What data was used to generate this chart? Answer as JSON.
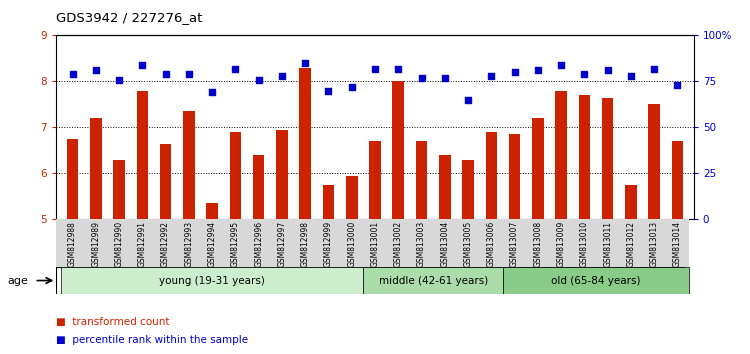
{
  "title": "GDS3942 / 227276_at",
  "samples": [
    "GSM812988",
    "GSM812989",
    "GSM812990",
    "GSM812991",
    "GSM812992",
    "GSM812993",
    "GSM812994",
    "GSM812995",
    "GSM812996",
    "GSM812997",
    "GSM812998",
    "GSM812999",
    "GSM813000",
    "GSM813001",
    "GSM813002",
    "GSM813003",
    "GSM813004",
    "GSM813005",
    "GSM813006",
    "GSM813007",
    "GSM813008",
    "GSM813009",
    "GSM813010",
    "GSM813011",
    "GSM813012",
    "GSM813013",
    "GSM813014"
  ],
  "bar_values": [
    6.75,
    7.2,
    6.3,
    7.8,
    6.65,
    7.35,
    5.35,
    6.9,
    6.4,
    6.95,
    8.3,
    5.75,
    5.95,
    6.7,
    8.0,
    6.7,
    6.4,
    6.3,
    6.9,
    6.85,
    7.2,
    7.8,
    7.7,
    7.65,
    5.75,
    7.5,
    6.7
  ],
  "scatter_values": [
    79,
    81,
    76,
    84,
    79,
    79,
    69,
    82,
    76,
    78,
    85,
    70,
    72,
    82,
    82,
    77,
    77,
    65,
    78,
    80,
    81,
    84,
    79,
    81,
    78,
    82,
    73
  ],
  "bar_color": "#cc2200",
  "scatter_color": "#0000cc",
  "ylim_left": [
    5,
    9
  ],
  "ylim_right": [
    0,
    100
  ],
  "yticks_left": [
    5,
    6,
    7,
    8,
    9
  ],
  "yticks_right": [
    0,
    25,
    50,
    75,
    100
  ],
  "ytick_labels_right": [
    "0",
    "25",
    "50",
    "75",
    "100%"
  ],
  "groups": [
    {
      "label": "young (19-31 years)",
      "start": 0,
      "end": 13,
      "color": "#cceecc"
    },
    {
      "label": "middle (42-61 years)",
      "start": 13,
      "end": 19,
      "color": "#aaddaa"
    },
    {
      "label": "old (65-84 years)",
      "start": 19,
      "end": 27,
      "color": "#88cc88"
    }
  ],
  "age_label": "age",
  "legend_bar_label": "transformed count",
  "legend_scatter_label": "percentile rank within the sample"
}
